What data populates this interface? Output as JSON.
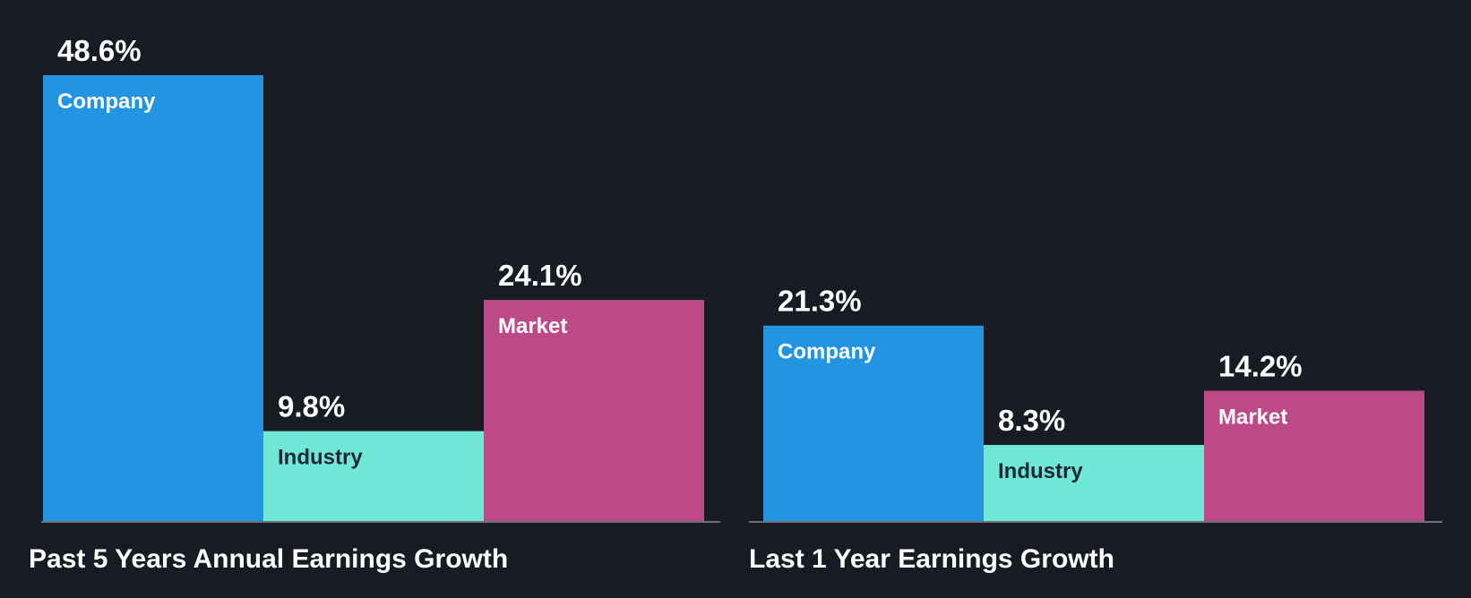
{
  "colors": {
    "background": "#161b24",
    "baseline": "#6b7079",
    "Company": "#2394df",
    "Industry": "#6fe8d7",
    "Market": "#bb4a86",
    "label_on_light": "#1b2a33",
    "label_on_dark": "#ffffff"
  },
  "chart_data": [
    {
      "type": "bar",
      "title": "Past 5 Years Annual Earnings Growth",
      "categories": [
        "Company",
        "Industry",
        "Market"
      ],
      "values": [
        48.6,
        9.8,
        24.1
      ],
      "value_labels": [
        "48.6%",
        "9.8%",
        "24.1%"
      ],
      "unit": "%",
      "ylim": [
        0,
        48.6
      ],
      "grid": false,
      "legend": "none"
    },
    {
      "type": "bar",
      "title": "Last 1 Year Earnings Growth",
      "categories": [
        "Company",
        "Industry",
        "Market"
      ],
      "values": [
        21.3,
        8.3,
        14.2
      ],
      "value_labels": [
        "21.3%",
        "8.3%",
        "14.2%"
      ],
      "unit": "%",
      "ylim": [
        0,
        48.6
      ],
      "grid": false,
      "legend": "none"
    }
  ]
}
